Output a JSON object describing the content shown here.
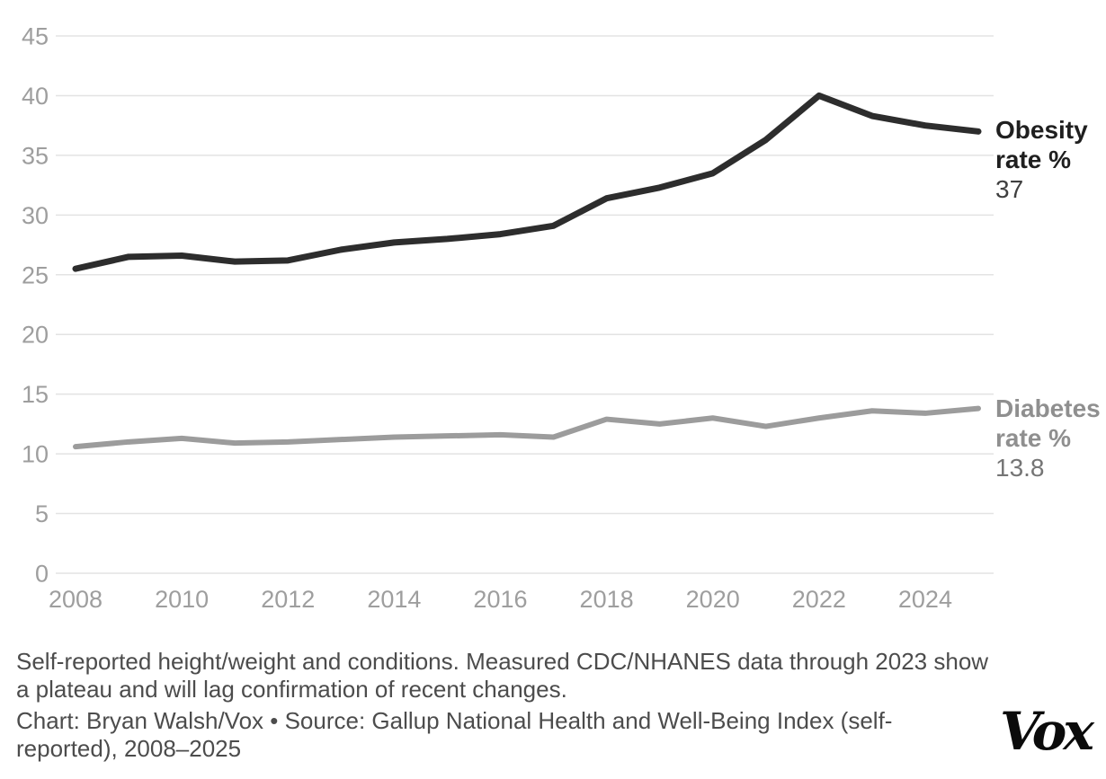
{
  "chart_data": {
    "type": "line",
    "x": [
      2008,
      2009,
      2010,
      2011,
      2012,
      2013,
      2014,
      2015,
      2016,
      2017,
      2018,
      2019,
      2020,
      2021,
      2022,
      2023,
      2024,
      2025
    ],
    "series": [
      {
        "name": "Obesity rate %",
        "end_value_label": "37",
        "color": "#2d2d2d",
        "label_color": "#1f1f1f",
        "value_color": "#3f3f3f",
        "stroke_width": 7,
        "values": [
          25.5,
          26.5,
          26.6,
          26.1,
          26.2,
          27.1,
          27.7,
          28.0,
          28.4,
          29.1,
          31.4,
          32.3,
          33.5,
          36.3,
          40.0,
          38.3,
          37.5,
          37.0
        ]
      },
      {
        "name": "Diabetes rate %",
        "end_value_label": "13.8",
        "color": "#9c9c9c",
        "label_color": "#8f8f8f",
        "value_color": "#757575",
        "stroke_width": 6,
        "values": [
          10.6,
          11.0,
          11.3,
          10.9,
          11.0,
          11.2,
          11.4,
          11.5,
          11.6,
          11.4,
          12.9,
          12.5,
          13.0,
          12.3,
          13.0,
          13.6,
          13.4,
          13.8
        ]
      }
    ],
    "y_ticks": [
      0,
      5,
      10,
      15,
      20,
      25,
      30,
      35,
      40,
      45
    ],
    "x_ticks": [
      2008,
      2010,
      2012,
      2014,
      2016,
      2018,
      2020,
      2022,
      2024
    ],
    "ylim": [
      0,
      45
    ],
    "xlim": [
      2008,
      2025
    ],
    "grid": "horizontal",
    "gridline_color": "#e3e3e3",
    "tick_label_color": "#9e9e9e",
    "legend_position": "right-end-labels",
    "title": "",
    "xlabel": "",
    "ylabel": ""
  },
  "footer": {
    "note": "Self-reported height/weight and conditions. Measured CDC/NHANES data through 2023 show a plateau and will lag confirmation of recent changes.",
    "credit": "Chart: Bryan Walsh/Vox • Source: Gallup National Health and Well-Being Index (self-reported), 2008–2025",
    "logo_text": "Vox",
    "logo_color": "#0b0b0b"
  }
}
